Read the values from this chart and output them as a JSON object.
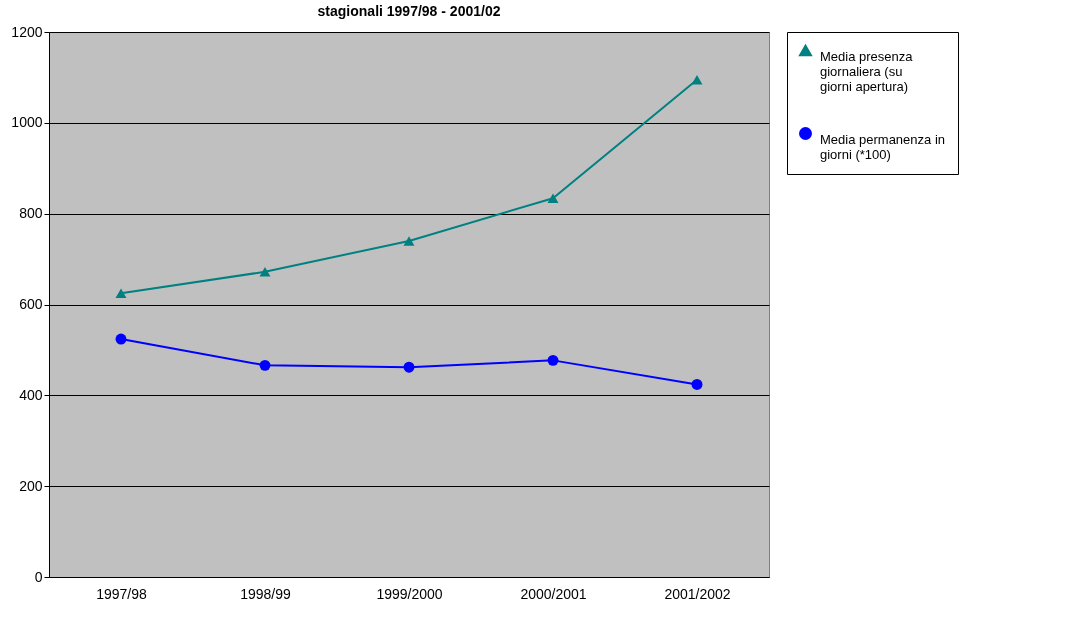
{
  "chart_data": {
    "type": "line",
    "title": "stagionali  1997/98 - 2001/02",
    "categories": [
      "1997/98",
      "1998/99",
      "1999/2000",
      "2000/2001",
      "2001/2002"
    ],
    "series": [
      {
        "name": "Media presenza giornaliera (su giorni apertura)",
        "color": "#008080",
        "marker": "triangle",
        "values": [
          625,
          672,
          740,
          834,
          1095
        ]
      },
      {
        "name": "Media permanenza in giorni (*100)",
        "color": "#0000ff",
        "marker": "circle",
        "values": [
          524,
          466,
          462,
          477,
          424
        ]
      }
    ],
    "ylim": [
      0,
      1200
    ],
    "yticks": [
      0,
      200,
      400,
      600,
      800,
      1000,
      1200
    ],
    "grid": "y",
    "legend": "right"
  }
}
